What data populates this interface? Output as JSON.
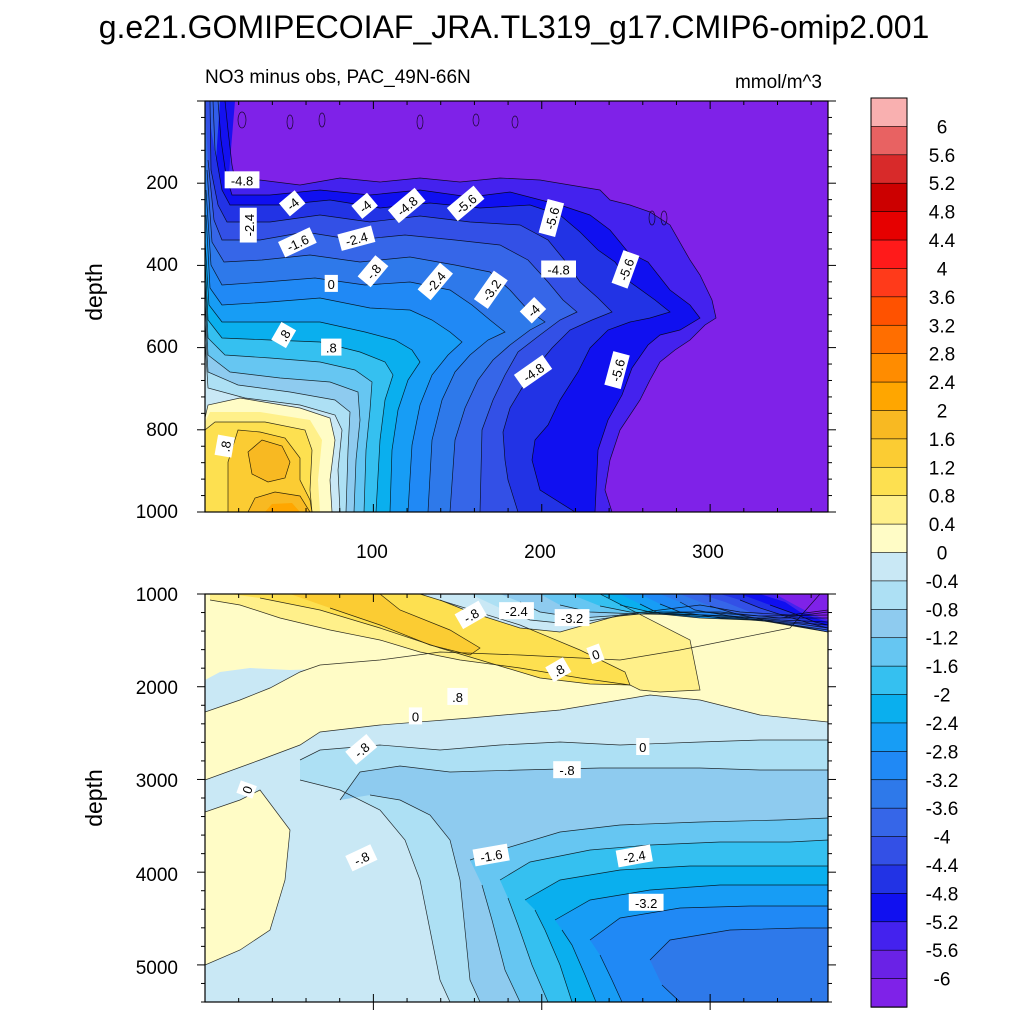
{
  "chart_data": {
    "type": "contour",
    "title": "g.e21.GOMIPECOIAF_JRA.TL319_g17.CMIP6-omip2.001",
    "left_string": "NO3 minus obs, PAC_49N-66N",
    "right_string": "mmol/m^3",
    "xlim": [
      0,
      370
    ],
    "x_ticks": [
      "100",
      "200",
      "300"
    ],
    "panels": [
      {
        "name": "upper",
        "ylabel": "depth",
        "ylim": [
          0,
          1000
        ],
        "y_ticks": [
          "200",
          "400",
          "600",
          "800",
          "1000"
        ],
        "contour_labels": [
          {
            "text": "-4.8",
            "x": 22,
            "y": 193,
            "rot": 0
          },
          {
            "text": "-2.4",
            "x": 26,
            "y": 302,
            "rot": -90
          },
          {
            "text": "-4",
            "x": 52,
            "y": 250,
            "rot": -40
          },
          {
            "text": "-4",
            "x": 95,
            "y": 256,
            "rot": -40
          },
          {
            "text": "-4.8",
            "x": 120,
            "y": 255,
            "rot": -40
          },
          {
            "text": "-5.6",
            "x": 155,
            "y": 250,
            "rot": -40
          },
          {
            "text": "-5.6",
            "x": 206,
            "y": 285,
            "rot": -75
          },
          {
            "text": "-1.6",
            "x": 55,
            "y": 345,
            "rot": -25
          },
          {
            "text": "-2.4",
            "x": 90,
            "y": 335,
            "rot": -15
          },
          {
            "text": "-.8",
            "x": 100,
            "y": 415,
            "rot": -50
          },
          {
            "text": "0",
            "x": 75,
            "y": 445,
            "rot": 0
          },
          {
            "text": "-2.4",
            "x": 137,
            "y": 440,
            "rot": -50
          },
          {
            "text": "-3.2",
            "x": 170,
            "y": 460,
            "rot": -55
          },
          {
            "text": "-4",
            "x": 195,
            "y": 510,
            "rot": -45
          },
          {
            "text": "-4.8",
            "x": 210,
            "y": 410,
            "rot": 0
          },
          {
            "text": "-5.6",
            "x": 250,
            "y": 410,
            "rot": -70
          },
          {
            "text": ".8",
            "x": 47,
            "y": 570,
            "rot": -60
          },
          {
            "text": ".8",
            "x": 75,
            "y": 600,
            "rot": 0
          },
          {
            "text": "-4.8",
            "x": 195,
            "y": 660,
            "rot": -35
          },
          {
            "text": "-5.6",
            "x": 245,
            "y": 655,
            "rot": -75
          },
          {
            "text": ".8",
            "x": 12,
            "y": 840,
            "rot": -80
          }
        ]
      },
      {
        "name": "lower",
        "ylabel": "depth",
        "ylim": [
          1000,
          5400
        ],
        "y_ticks": [
          "1000",
          "2000",
          "3000",
          "4000",
          "5000"
        ],
        "contour_labels": [
          {
            "text": "-.8",
            "x": 158,
            "y": 1230,
            "rot": -30
          },
          {
            "text": "-2.4",
            "x": 185,
            "y": 1185,
            "rot": 0
          },
          {
            "text": "-3.2",
            "x": 218,
            "y": 1260,
            "rot": 0
          },
          {
            "text": "0",
            "x": 232,
            "y": 1650,
            "rot": -20
          },
          {
            "text": ".8",
            "x": 210,
            "y": 1820,
            "rot": -30
          },
          {
            "text": ".8",
            "x": 150,
            "y": 2110,
            "rot": 0
          },
          {
            "text": "0",
            "x": 125,
            "y": 2320,
            "rot": 0
          },
          {
            "text": "0",
            "x": 260,
            "y": 2650,
            "rot": 0
          },
          {
            "text": "-.8",
            "x": 93,
            "y": 2680,
            "rot": -40
          },
          {
            "text": "0",
            "x": 25,
            "y": 3110,
            "rot": -70
          },
          {
            "text": "-.8",
            "x": 215,
            "y": 2900,
            "rot": 0
          },
          {
            "text": "-.8",
            "x": 93,
            "y": 3850,
            "rot": -25
          },
          {
            "text": "-1.6",
            "x": 170,
            "y": 3820,
            "rot": -10
          },
          {
            "text": "-2.4",
            "x": 255,
            "y": 3830,
            "rot": -10
          },
          {
            "text": "-3.2",
            "x": 262,
            "y": 4330,
            "rot": 0
          }
        ]
      }
    ],
    "colorbar": {
      "levels": [
        "6",
        "5.6",
        "5.2",
        "4.8",
        "4.4",
        "4",
        "3.6",
        "3.2",
        "2.8",
        "2.4",
        "2",
        "1.6",
        "1.2",
        "0.8",
        "0.4",
        "0",
        "-0.4",
        "-0.8",
        "-1.2",
        "-1.6",
        "-2",
        "-2.4",
        "-2.8",
        "-3.2",
        "-3.6",
        "-4",
        "-4.4",
        "-4.8",
        "-5.2",
        "-5.6",
        "-6"
      ],
      "colors": [
        "#f9b0b0",
        "#e86262",
        "#d82a2a",
        "#cc0000",
        "#e60000",
        "#ff1a1a",
        "#ff3a1a",
        "#ff5200",
        "#ff6e00",
        "#ff8c00",
        "#ffa600",
        "#f8b922",
        "#fbcc33",
        "#fde050",
        "#fff08a",
        "#fffcc6",
        "#c9e8f5",
        "#ade0f4",
        "#8ecbef",
        "#66c6f2",
        "#35c0f0",
        "#0aafee",
        "#179df5",
        "#2089f5",
        "#2e79ea",
        "#3666e8",
        "#3350e6",
        "#2233e5",
        "#1010f0",
        "#4422ee",
        "#6a22e6",
        "#7f22e8"
      ]
    }
  }
}
